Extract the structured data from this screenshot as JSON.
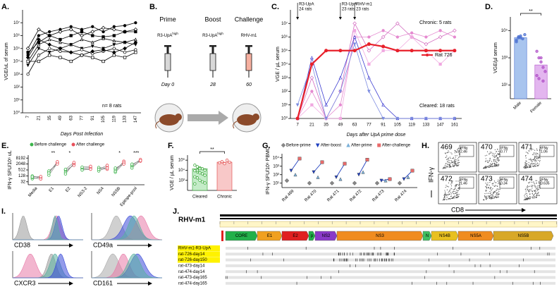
{
  "panel_labels": [
    "A.",
    "B.",
    "C.",
    "D.",
    "E.",
    "F.",
    "G.",
    "H.",
    "I.",
    "J."
  ],
  "regimen": {
    "steps": [
      {
        "title": "Prime",
        "agent": "R3-UpA",
        "sup": "high",
        "day": "Day 0"
      },
      {
        "title": "Boost",
        "agent": "R3-UpA",
        "sup": "high",
        "day": "28"
      },
      {
        "title": "Challenge",
        "agent": "RHV-m1",
        "day": "60"
      }
    ]
  },
  "chart_data": [
    {
      "type": "line",
      "ylabel": "VGE/uL of serum",
      "xlabel": "Days Post Infection",
      "categories": [
        "7",
        "21",
        "35",
        "49",
        "63",
        "77",
        "91",
        "105",
        "119",
        "133",
        "147"
      ],
      "log": true,
      "ylim": [
        1,
        100000000
      ],
      "yticks": [
        {
          "value": 1,
          "label": "10⁰"
        },
        {
          "value": 10,
          "label": "10¹"
        },
        {
          "value": 100,
          "label": "10²"
        },
        {
          "value": 1000,
          "label": "10³"
        },
        {
          "value": 10000,
          "label": "10⁴"
        },
        {
          "value": 100000,
          "label": "10⁵"
        },
        {
          "value": 1000000,
          "label": "10⁶"
        },
        {
          "value": 10000000,
          "label": "10⁷"
        }
      ],
      "color": "#000000",
      "series": [
        {
          "values": [
            30000,
            1000000,
            2000000,
            3000000,
            5000000,
            3000000,
            5000000,
            2000000,
            5000000,
            6000000,
            10000000
          ]
        },
        {
          "values": [
            100000,
            3000000,
            1000000,
            2000000,
            3000000,
            1000000,
            2000000,
            4000000,
            3000000,
            2000000,
            3000000
          ]
        },
        {
          "values": [
            50000,
            300000,
            1000000,
            500000,
            1000000,
            2000000,
            1000000,
            800000,
            1000000,
            2000000,
            2000000
          ]
        },
        {
          "values": [
            10000,
            200000,
            500000,
            300000,
            200000,
            500000,
            300000,
            600000,
            400000,
            300000,
            500000
          ]
        },
        {
          "values": [
            5000,
            100000,
            50000,
            100000,
            200000,
            100000,
            150000,
            100000,
            200000,
            300000,
            200000
          ]
        },
        {
          "values": [
            1000,
            30000,
            100000,
            60000,
            50000,
            80000,
            40000,
            60000,
            100000,
            50000,
            80000
          ]
        },
        {
          "values": [
            20000,
            500000,
            200000,
            100000,
            50000,
            30000,
            60000,
            80000,
            50000,
            100000,
            300000
          ]
        },
        {
          "values": [
            10000,
            10000,
            30000,
            20000,
            10000,
            30000,
            20000,
            10000,
            30000,
            20000,
            50000
          ]
        }
      ],
      "note": "n= 8 rats",
      "note_color": "#1f3fd6"
    },
    {
      "type": "line",
      "ylabel": "VGE / µL serum",
      "xlabel": "Days after UpA prime dose",
      "categories": [
        "7",
        "21",
        "35",
        "49",
        "63",
        "77",
        "91",
        "105",
        "119",
        "133",
        "147",
        "161"
      ],
      "log": true,
      "ylim": [
        1,
        100000000
      ],
      "yticks": [
        {
          "value": 1,
          "label": "10⁰"
        },
        {
          "value": 10,
          "label": "10¹"
        },
        {
          "value": 100,
          "label": "10²"
        },
        {
          "value": 1000,
          "label": "10³"
        },
        {
          "value": 10000,
          "label": "10⁴"
        },
        {
          "value": 100000,
          "label": "10⁵"
        },
        {
          "value": 1000000,
          "label": "10⁶"
        },
        {
          "value": 10000000,
          "label": "10⁷"
        }
      ],
      "series": [
        {
          "color": "#e58ad0",
          "values": [
            1,
            100,
            1,
            10,
            1000000,
            1000000,
            3000000,
            1000000,
            2000000,
            1000000,
            3000000,
            1000000
          ]
        },
        {
          "color": "#d36cc0",
          "values": [
            1,
            1000,
            1,
            100,
            10000000,
            100000,
            1000000,
            10000000,
            1000000,
            300000,
            1000000,
            3000000
          ]
        },
        {
          "color": "#f0a8e0",
          "values": [
            1,
            10,
            1,
            1,
            3000000,
            10000,
            100000,
            100000,
            1000000,
            100000,
            10000,
            100000
          ]
        },
        {
          "color": "#3a3ad0",
          "values": [
            1,
            30000,
            10,
            1000,
            1000000,
            1000,
            10,
            1,
            1,
            1,
            1,
            1
          ]
        },
        {
          "color": "#7a8ae0",
          "values": [
            10,
            10000,
            1,
            100,
            300000,
            100,
            1,
            1,
            1,
            1,
            1,
            1
          ]
        },
        {
          "name": "Rat 726",
          "color": "#e8202a",
          "values": [
            1,
            10000,
            100000,
            100000,
            100000,
            300000,
            200000,
            100000,
            100000,
            100000,
            100000,
            100000
          ]
        }
      ],
      "annotations": [
        {
          "lines": [
            "R3-UpA",
            "24 rats"
          ]
        },
        {
          "lines": [
            "R3-UpA",
            "23 rats"
          ]
        },
        {
          "lines": [
            "RHV-m1",
            "23 rats"
          ]
        }
      ],
      "labels": [
        "Chronic: 5 rats",
        "Cleared: 18 rats"
      ]
    },
    {
      "type": "bar",
      "ylabel": "VGE/µl serum",
      "categories": [
        "Male",
        "Female"
      ],
      "values": [
        30000,
        300
      ],
      "points": [
        [
          20000,
          30000,
          40000,
          25000,
          50000,
          15000,
          35000,
          30000
        ],
        [
          3000,
          1000,
          500,
          200,
          100,
          50,
          30,
          1000,
          20
        ]
      ],
      "colors": [
        "#a8c4ee",
        "#e3b6ef"
      ],
      "point_colors": [
        "#4a6fd0",
        "#b050c8"
      ],
      "log": true,
      "ylim": [
        1,
        1000000
      ],
      "yticks": [
        {
          "value": 10,
          "label": "10¹"
        },
        {
          "value": 1000,
          "label": "10³"
        },
        {
          "value": 100000,
          "label": "10⁵"
        }
      ],
      "significance": "**"
    },
    {
      "type": "paired-dot",
      "ylabel": "IFN-γ SFU/10⁶ uL",
      "categories": [
        "Media",
        "E1",
        "E2",
        "NS3-2",
        "NS4",
        "NS5B",
        "Epitope-pool"
      ],
      "log": true,
      "ylim": [
        16,
        16384
      ],
      "yticks": [
        32,
        128,
        512,
        2048,
        8192
      ],
      "series": [
        {
          "name": "Before challenge",
          "color": "#3cb44b",
          "values": [
            [
              64,
              128,
              90,
              100
            ],
            [
              150,
              300,
              400,
              250
            ],
            [
              300,
              500,
              200,
              600
            ],
            [
              600,
              800,
              1000,
              500
            ],
            [
              400,
              700,
              900,
              600
            ],
            [
              300,
              400,
              600,
              800
            ],
            [
              1200,
              800,
              1500,
              2000
            ]
          ]
        },
        {
          "name": "After challenge",
          "color": "#e8505b",
          "values": [
            [
              100,
              80,
              60,
              110
            ],
            [
              2500,
              3000,
              2048,
              3500
            ],
            [
              2000,
              1500,
              2500,
              3000
            ],
            [
              700,
              900,
              1200,
              600
            ],
            [
              1000,
              600,
              800,
              1500
            ],
            [
              2500,
              4000,
              3000,
              2000
            ],
            [
              4000,
              5000,
              6000,
              4500
            ]
          ]
        }
      ],
      "significance": [
        null,
        "**",
        "*",
        null,
        null,
        "*",
        "***"
      ]
    },
    {
      "type": "bar",
      "ylabel": "VGE / µL serum",
      "categories": [
        "Cleared",
        "Chronic"
      ],
      "values": [
        20000,
        400000
      ],
      "points": [
        [
          100000,
          50000,
          30000,
          20000,
          10000,
          8000,
          5000,
          3000,
          2000,
          1000,
          500,
          300,
          100,
          50,
          30,
          20,
          10000,
          20000
        ],
        [
          300000,
          500000,
          200000,
          1000000,
          400000
        ]
      ],
      "colors": [
        "#c4ecc8",
        "#f8c8c8"
      ],
      "point_colors": [
        "#2ca02c",
        "#e04040"
      ],
      "log": true,
      "ylim": [
        1,
        10000000
      ],
      "yticks": [
        {
          "value": 100,
          "label": "10²"
        },
        {
          "value": 10000,
          "label": "10⁴"
        },
        {
          "value": 1000000,
          "label": "10⁶"
        }
      ],
      "significance": "**"
    },
    {
      "type": "dot",
      "ylabel": "IFN-γ SFU/10⁶ PBMC",
      "categories": [
        "Rat 469",
        "Rat 470",
        "Rat 471",
        "Rat 472",
        "Rat 473",
        "Rat 474"
      ],
      "log": true,
      "ylim": [
        3,
        30000
      ],
      "yticks": [
        {
          "value": 10,
          "label": "10¹"
        },
        {
          "value": 100,
          "label": "10²"
        },
        {
          "value": 1000,
          "label": "10³"
        },
        {
          "value": 10000,
          "label": "10⁴"
        }
      ],
      "series": [
        {
          "name": "Before-prime",
          "color": "#888888",
          "values": [
            20,
            10,
            10,
            10,
            10,
            10
          ]
        },
        {
          "name": "After-boost",
          "color": "#1f3fbf",
          "values": [
            300,
            200,
            50,
            100,
            20,
            30
          ]
        },
        {
          "name": "After-prime",
          "color": "#7ab0d8",
          "values": [
            100,
            50,
            30,
            200,
            20,
            50
          ]
        },
        {
          "name": "After-challenge",
          "color": "#e86a6a",
          "values": [
            8000,
            3000,
            2000,
            6000,
            30,
            300
          ]
        }
      ]
    }
  ],
  "flow": {
    "ylabel": "IFN-γ",
    "xlabel": "CD8",
    "plots": [
      {
        "id": "469",
        "gate": "IFNγ",
        "pct": "2.46",
        "color": "#1a1adb"
      },
      {
        "id": "470",
        "gate": "IFNγ",
        "pct": "0.77",
        "color": "#1a1adb"
      },
      {
        "id": "471",
        "gate": "IFNγ",
        "pct": "1.06",
        "color": "#1a1adb"
      },
      {
        "id": "472",
        "gate": "IFNγ",
        "pct": "1.46",
        "color": "#1a1adb"
      },
      {
        "id": "473",
        "gate": "IFNγ",
        "pct": "0.34",
        "color": "#e02020"
      },
      {
        "id": "474",
        "gate": "IFNγ",
        "pct": "0.635",
        "color": "#e02020"
      }
    ]
  },
  "histograms": {
    "markers": [
      "CD38",
      "CD49a",
      "CXCR3",
      "CD161"
    ]
  },
  "genome": {
    "name": "RHV-m1",
    "genes": [
      "CORE",
      "E1",
      "E2",
      "p",
      "NS2",
      "NS3",
      "N",
      "NS4B",
      "NS5A",
      "NS5B"
    ],
    "gene_colors": [
      "#22b04a",
      "#f0a020",
      "#e02020",
      "#22b04a",
      "#8a3ac8",
      "#f08c20",
      "#40c060",
      "#e8c020",
      "#f08c20",
      "#d8a828"
    ],
    "samples": [
      "RHV-m1-R3-UpA",
      "rat-726-day14",
      "rat-726-day150",
      "rat-473-day14",
      "rat-474-day14",
      "rat-473-day165",
      "rat-474-day165"
    ],
    "highlighted": [
      true,
      true,
      true,
      false,
      false,
      false,
      false
    ]
  }
}
